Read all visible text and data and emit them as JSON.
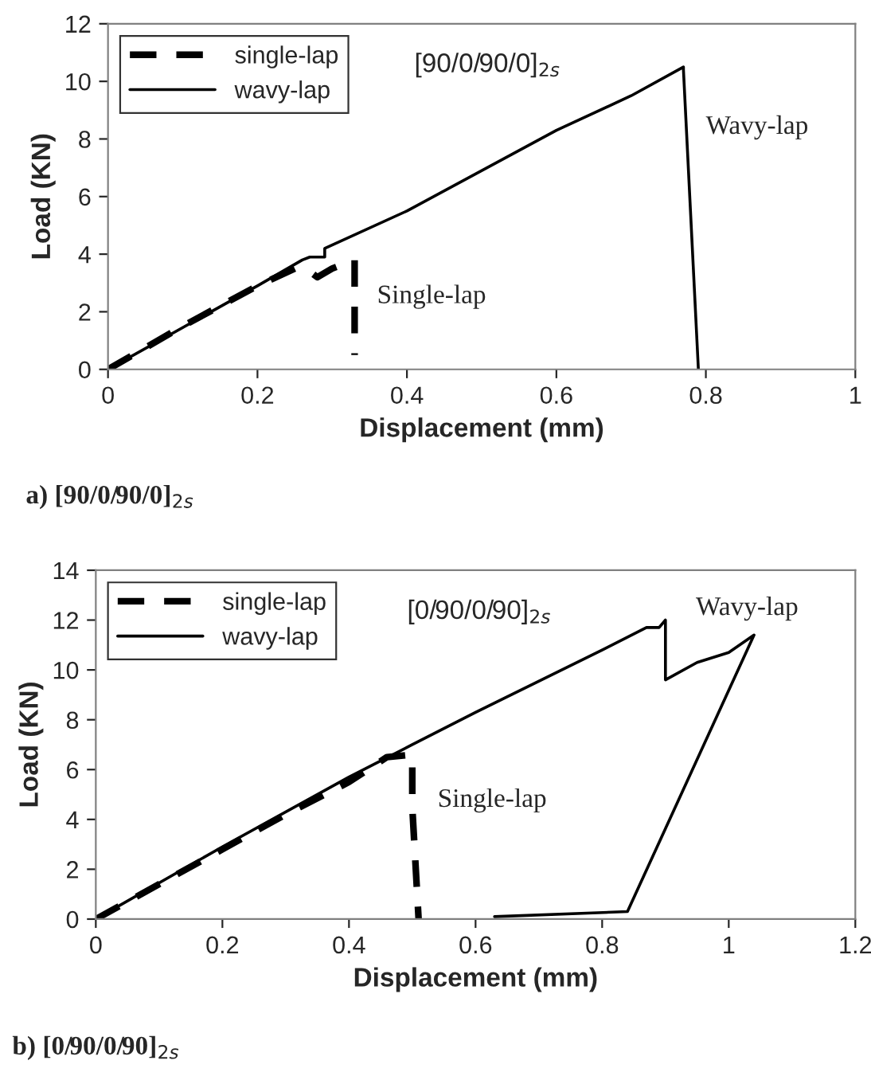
{
  "chart_data": [
    {
      "type": "line",
      "xlabel": "Displacement (mm)",
      "ylabel": "Load (KN)",
      "xlim": [
        0,
        1
      ],
      "ylim": [
        0,
        12
      ],
      "xticks": [
        0,
        0.2,
        0.4,
        0.6,
        0.8,
        1
      ],
      "yticks": [
        0,
        2,
        4,
        6,
        8,
        10,
        12
      ],
      "grid": false,
      "legend": "top left",
      "annotations": [
        "[90/0/90/0]$_{2s}$",
        "Wavy-lap",
        "Single-lap",
        "a) [90/0/90/0]$_{2s}$"
      ],
      "series": [
        {
          "name": "single-lap",
          "color": "#000000",
          "line_style": "dashed",
          "x": [
            0,
            0.1,
            0.2,
            0.25,
            0.27,
            0.28,
            0.3,
            0.32,
            0.33,
            0.33
          ],
          "values": [
            0,
            1.5,
            2.9,
            3.5,
            3.4,
            3.2,
            3.5,
            3.7,
            3.8,
            0.5
          ]
        },
        {
          "name": "wavy-lap",
          "color": "#000000",
          "line_style": "solid",
          "x": [
            0,
            0.2,
            0.26,
            0.27,
            0.29,
            0.29,
            0.4,
            0.6,
            0.7,
            0.77,
            0.77,
            0.79
          ],
          "values": [
            0,
            2.9,
            3.8,
            3.9,
            3.9,
            4.2,
            5.5,
            8.3,
            9.5,
            10.5,
            10.4,
            0
          ]
        }
      ]
    },
    {
      "type": "line",
      "xlabel": "Displacement (mm)",
      "ylabel": "Load (KN)",
      "xlim": [
        0,
        1.2
      ],
      "ylim": [
        0,
        14
      ],
      "xticks": [
        0,
        0.2,
        0.4,
        0.6,
        0.8,
        1,
        1.2
      ],
      "yticks": [
        0,
        2,
        4,
        6,
        8,
        10,
        12,
        14
      ],
      "grid": false,
      "legend": "top left",
      "annotations": [
        "[0/90/0/90]$_{2s}$",
        "Wavy-lap",
        "Single-lap",
        "b) [0/90/0/90]$_{2s}$"
      ],
      "series": [
        {
          "name": "single-lap",
          "color": "#000000",
          "line_style": "dashed",
          "x": [
            0,
            0.1,
            0.2,
            0.3,
            0.4,
            0.46,
            0.5,
            0.5,
            0.51
          ],
          "values": [
            0,
            1.4,
            2.8,
            4.2,
            5.5,
            6.5,
            6.6,
            4.5,
            0
          ]
        },
        {
          "name": "wavy-lap",
          "color": "#000000",
          "line_style": "solid",
          "x": [
            0,
            0.2,
            0.4,
            0.5,
            0.6,
            0.8,
            0.87,
            0.89,
            0.9,
            0.9,
            0.95,
            1.0,
            1.04,
            0.84,
            0.63
          ],
          "values": [
            0,
            2.9,
            5.7,
            7.0,
            8.3,
            10.8,
            11.7,
            11.7,
            12.0,
            9.6,
            10.3,
            10.7,
            11.4,
            0.3,
            0.1
          ]
        }
      ]
    }
  ]
}
